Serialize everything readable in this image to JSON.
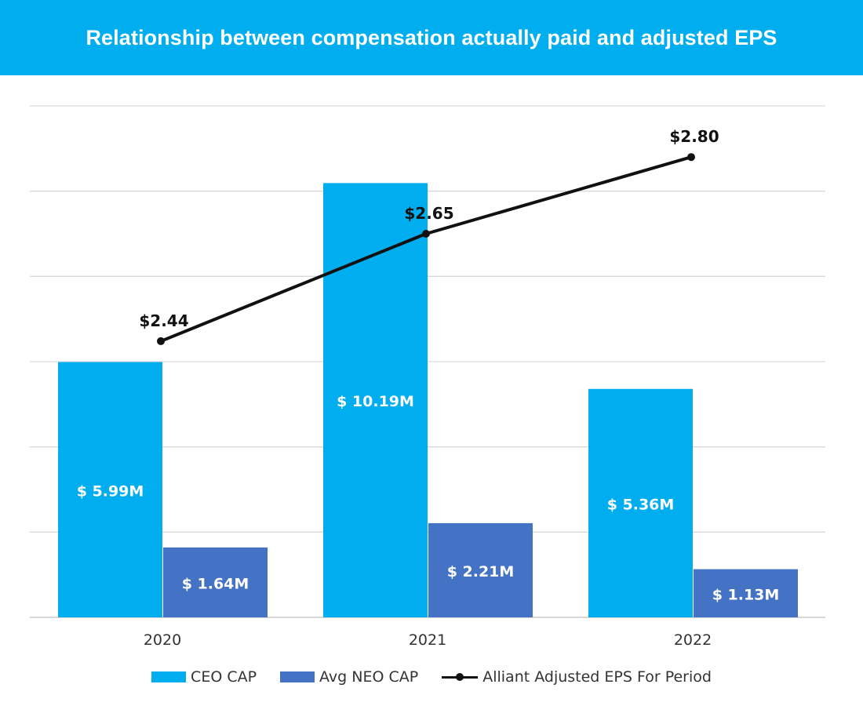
{
  "header": {
    "title": "Relationship between compensation actually paid and adjusted EPS"
  },
  "colors": {
    "header_bg": "#00aeef",
    "ceo_cap": "#00aeef",
    "neo_cap": "#4472c4",
    "eps_line": "#111111",
    "grid": "#d9d9d9"
  },
  "chart_data": {
    "type": "bar",
    "title": "Relationship between compensation actually paid and adjusted EPS",
    "categories": [
      "2020",
      "2021",
      "2022"
    ],
    "series": [
      {
        "name": "CEO CAP",
        "type": "bar",
        "values": [
          5.99,
          10.19,
          5.36
        ],
        "labels": [
          "$ 5.99M",
          "$ 10.19M",
          "$ 5.36M"
        ],
        "color": "#00aeef"
      },
      {
        "name": "Avg NEO CAP",
        "type": "bar",
        "values": [
          1.64,
          2.21,
          1.13
        ],
        "labels": [
          "$ 1.64M",
          "$ 2.21M",
          "$ 1.13M"
        ],
        "color": "#4472c4"
      },
      {
        "name": "Alliant Adjusted EPS For Period",
        "type": "line",
        "values": [
          2.44,
          2.65,
          2.8
        ],
        "labels": [
          "$2.44",
          "$2.65",
          "$2.80"
        ],
        "color": "#111111",
        "marker": "circle"
      }
    ],
    "bar_axis_range": [
      0,
      12
    ],
    "line_axis_range": [
      1.9,
      2.9
    ],
    "grid": true,
    "legend": "bottom"
  }
}
